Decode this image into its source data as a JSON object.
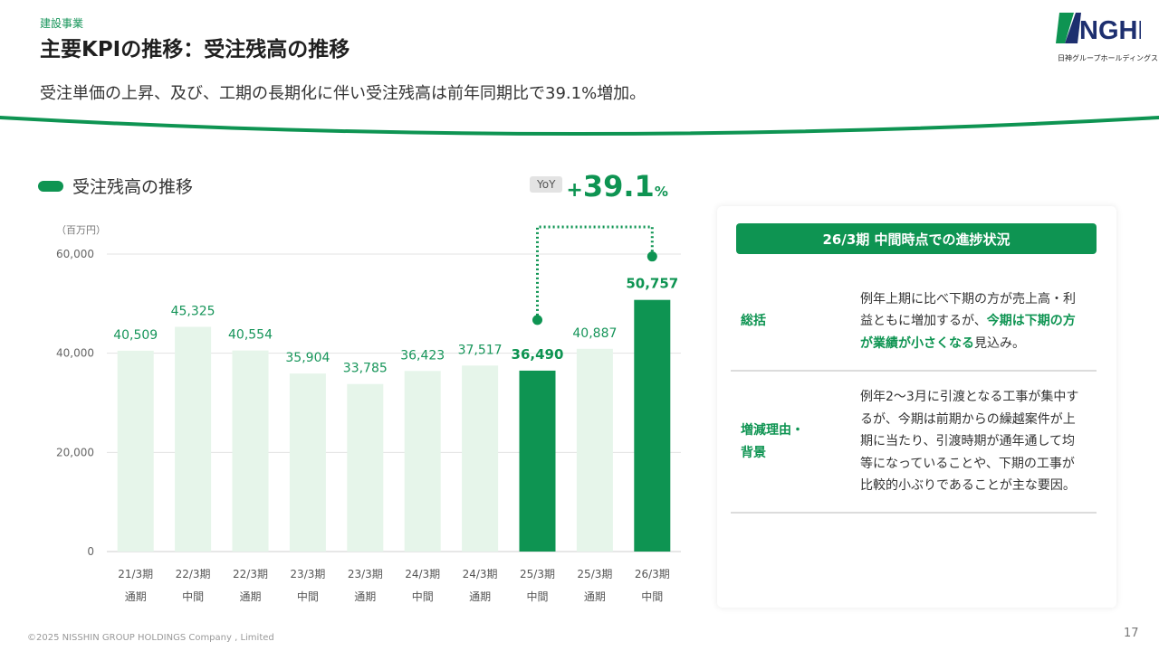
{
  "header": {
    "category": "建設事業",
    "title": "主要KPIの推移：受注残高の推移",
    "subtitle": "受注単価の上昇、及び、工期の長期化に伴い受注残高は前年同期比で39.1%増加。"
  },
  "logo": {
    "mark": "NGHD",
    "text": "日神グループホールディングス",
    "colors": {
      "green": "#0e9452",
      "navy": "#1d2f6f"
    }
  },
  "legend": {
    "label": "受注残高の推移",
    "color": "#0e9452"
  },
  "yoy": {
    "badge": "YoY",
    "sign": "+",
    "value": "39.1",
    "unit": "%"
  },
  "chart_data": {
    "type": "bar",
    "unit_label": "（百万円）",
    "categories": [
      [
        "21/3期",
        "通期"
      ],
      [
        "22/3期",
        "中間"
      ],
      [
        "22/3期",
        "通期"
      ],
      [
        "23/3期",
        "中間"
      ],
      [
        "23/3期",
        "通期"
      ],
      [
        "24/3期",
        "中間"
      ],
      [
        "24/3期",
        "通期"
      ],
      [
        "25/3期",
        "中間"
      ],
      [
        "25/3期",
        "通期"
      ],
      [
        "26/3期",
        "中間"
      ]
    ],
    "values": [
      40509,
      45325,
      40554,
      35904,
      33785,
      36423,
      37517,
      36490,
      40887,
      50757
    ],
    "value_labels": [
      "40,509",
      "45,325",
      "40,554",
      "35,904",
      "33,785",
      "36,423",
      "37,517",
      "36,490",
      "40,887",
      "50,757"
    ],
    "highlighted": [
      false,
      false,
      false,
      false,
      false,
      false,
      false,
      true,
      false,
      true
    ],
    "yticks": [
      0,
      20000,
      40000,
      60000
    ],
    "ytick_labels": [
      "0",
      "20,000",
      "40,000",
      "60,000"
    ],
    "ylim": [
      0,
      60000
    ],
    "grid": true,
    "colors": {
      "base": "#e6f5ea",
      "highlight": "#0e9452",
      "label": "#17955a",
      "grid": "#e3e3e3"
    },
    "comparison": {
      "from_index": 7,
      "to_index": 9
    }
  },
  "panel": {
    "title": "26/3期 中間時点での進捗状況",
    "rows": [
      {
        "label_lines": [
          "総括"
        ],
        "text_before": "例年上期に比べ下期の方が売上高・利益ともに増加するが、",
        "text_highlight": "今期は下期の方が業績が小さくなる",
        "text_after": "見込み。"
      },
      {
        "label_lines": [
          "増減理由・",
          "背景"
        ],
        "text_before": "例年2〜3月に引渡となる工事が集中するが、今期は前期からの繰越案件が上期に当たり、引渡時期が通年通して均等になっていることや、下期の工事が比較的小ぶりであることが主な要因。",
        "text_highlight": "",
        "text_after": ""
      }
    ]
  },
  "footer": {
    "copyright": "©2025 NISSHIN GROUP HOLDINGS Company , Limited",
    "page": "17"
  }
}
